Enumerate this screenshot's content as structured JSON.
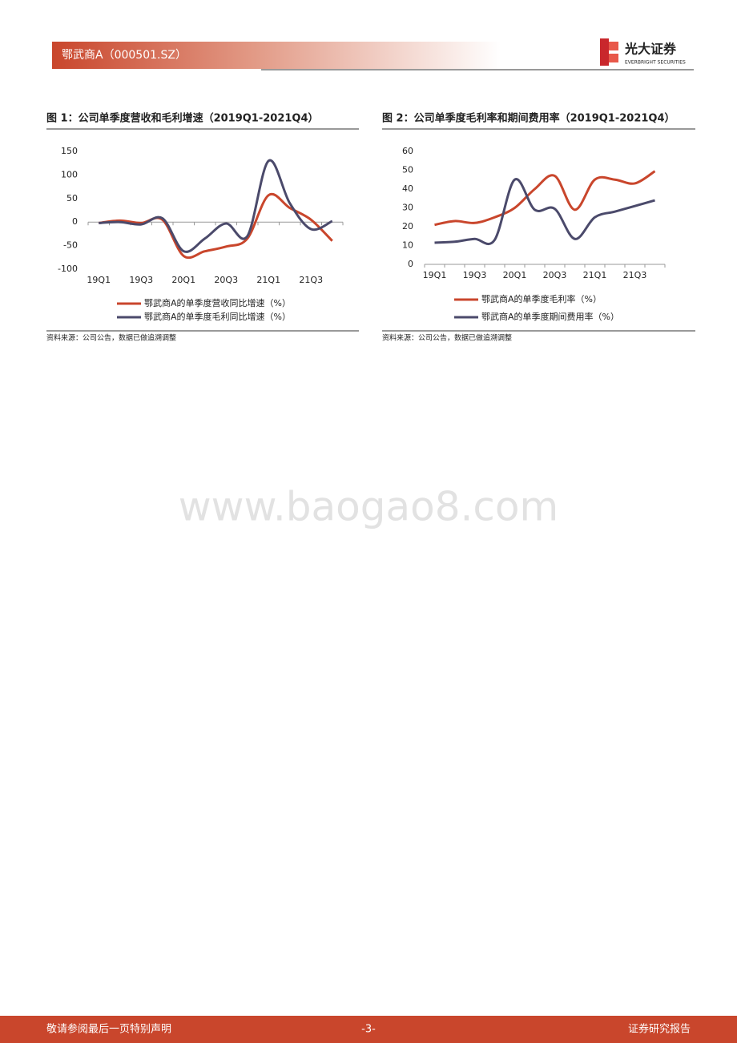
{
  "header": {
    "title": "鄂武商A（000501.SZ）",
    "logo_name": "光大证券",
    "logo_subtitle": "EVERBRIGHT SECURITIES"
  },
  "chart_data": [
    {
      "type": "line",
      "title": "图 1：公司单季度营收和毛利增速（2019Q1-2021Q4）",
      "categories": [
        "19Q1",
        null,
        "19Q3",
        null,
        "20Q1",
        null,
        "20Q3",
        null,
        "21Q1",
        null,
        "21Q3",
        null
      ],
      "series": [
        {
          "name": "鄂武商A的单季度营收同比增速（%）",
          "color": "#c9462c",
          "values": [
            -2,
            3,
            -2,
            5,
            -72,
            -62,
            -52,
            -35,
            57,
            30,
            5,
            -40
          ]
        },
        {
          "name": "鄂武商A的单季度毛利同比增速（%）",
          "color": "#4b4a6b",
          "values": [
            -2,
            0,
            -5,
            8,
            -62,
            -35,
            -3,
            -30,
            130,
            40,
            -15,
            2
          ]
        }
      ],
      "ylim": [
        -100,
        150
      ],
      "yticks": [
        -100,
        -50,
        0,
        50,
        100,
        150
      ]
    },
    {
      "type": "line",
      "title": "图 2：公司单季度毛利率和期间费用率（2019Q1-2021Q4）",
      "categories": [
        "19Q1",
        null,
        "19Q3",
        null,
        "20Q1",
        null,
        "20Q3",
        null,
        "21Q1",
        null,
        "21Q3",
        null
      ],
      "series": [
        {
          "name": "鄂武商A的单季度毛利率（%）",
          "color": "#c9462c",
          "values": [
            21,
            23,
            22,
            25,
            30,
            40,
            47,
            29,
            45,
            45,
            43,
            49.5
          ]
        },
        {
          "name": "鄂武商A的单季度期间费用率（%）",
          "color": "#4b4a6b",
          "values": [
            11.5,
            12,
            13.5,
            13,
            45,
            29,
            29.5,
            13.5,
            25,
            28,
            31,
            34
          ]
        }
      ],
      "ylim": [
        0,
        60
      ],
      "yticks": [
        0,
        10,
        20,
        30,
        40,
        50,
        60
      ]
    }
  ],
  "sources": [
    "资料来源：公司公告，数据已做追溯调整",
    "资料来源：公司公告，数据已做追溯调整"
  ],
  "watermark": "www.baogao8.com",
  "footer": {
    "left": "敬请参阅最后一页特别声明",
    "page": "-3-",
    "right": "证券研究报告"
  }
}
